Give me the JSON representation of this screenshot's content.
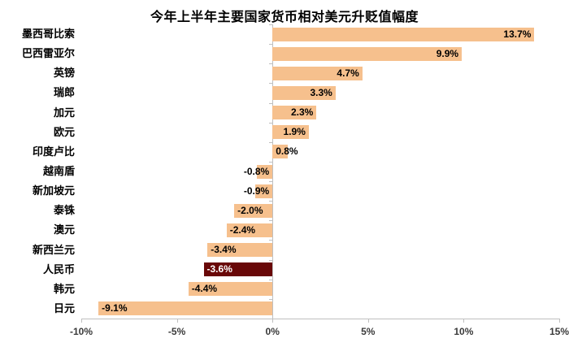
{
  "chart_data": {
    "type": "bar",
    "orientation": "horizontal",
    "title": "今年上半年主要国家货币相对美元升贬值幅度",
    "categories": [
      "墨西哥比索",
      "巴西雷亚尔",
      "英镑",
      "瑞郎",
      "加元",
      "欧元",
      "印度卢比",
      "越南盾",
      "新加坡元",
      "泰铢",
      "澳元",
      "新西兰元",
      "人民币",
      "韩元",
      "日元"
    ],
    "values": [
      13.7,
      9.9,
      4.7,
      3.3,
      2.3,
      1.9,
      0.8,
      -0.8,
      -0.9,
      -2.0,
      -2.4,
      -3.4,
      -3.6,
      -4.4,
      -9.1
    ],
    "value_labels": [
      "13.7%",
      "9.9%",
      "4.7%",
      "3.3%",
      "2.3%",
      "1.9%",
      "0.8%",
      "-0.8%",
      "-0.9%",
      "-2.0%",
      "-2.4%",
      "-3.4%",
      "-3.6%",
      "-4.4%",
      "-9.1%"
    ],
    "highlight_index": 12,
    "highlight_category": "人民币",
    "xlim": [
      -10,
      15
    ],
    "x_ticks": [
      {
        "value": -10,
        "label": "-10%"
      },
      {
        "value": -5,
        "label": "-5%"
      },
      {
        "value": 0,
        "label": "0%"
      },
      {
        "value": 5,
        "label": "5%"
      },
      {
        "value": 10,
        "label": "10%"
      },
      {
        "value": 15,
        "label": "15%"
      }
    ],
    "grid": "zero-axis-only",
    "legend": "none",
    "colors": {
      "bar": "#F6C08D",
      "highlight_bar": "#690808",
      "label": "#000000",
      "highlight_label": "#FFFFFF",
      "axis": "#BFBFBF",
      "axis_text": "#3a3a3a",
      "title": "#000000",
      "background": "#FFFFFF"
    }
  }
}
